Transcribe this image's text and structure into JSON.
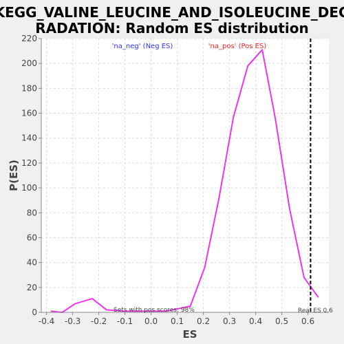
{
  "chart_data": {
    "type": "line",
    "title_line1": "KEGG_VALINE_LEUCINE_AND_ISOLEUCINE_DEG",
    "title_line2": "RADATION: Random ES distribution",
    "xlabel": "ES",
    "ylabel": "P(ES)",
    "xlim": [
      -0.42,
      0.68
    ],
    "ylim": [
      0,
      220
    ],
    "x_ticks": [
      -0.4,
      -0.3,
      -0.2,
      -0.1,
      0.0,
      0.1,
      0.2,
      0.3,
      0.4,
      0.5,
      0.6
    ],
    "x_tick_labels": [
      "-0.4",
      "-0.3",
      "-0.2",
      "-0.1",
      "0.0",
      "0.1",
      "0.2",
      "0.3",
      "0.4",
      "0.5",
      "0.6"
    ],
    "y_ticks": [
      0,
      20,
      40,
      60,
      80,
      100,
      120,
      140,
      160,
      180,
      200,
      220
    ],
    "y_tick_labels": [
      "0",
      "20",
      "40",
      "60",
      "80",
      "100",
      "120",
      "140",
      "160",
      "180",
      "200",
      "220"
    ],
    "grid": true,
    "legend": [
      {
        "label": "'na_neg' (Neg ES)",
        "color": "#3333ff"
      },
      {
        "label": "'na_pos' (Pos ES)",
        "color": "#ff2222"
      }
    ],
    "series": [
      {
        "color": "#ee33ee",
        "x": [
          -0.383,
          -0.34,
          -0.29,
          -0.225,
          -0.17,
          -0.105,
          -0.05,
          0.01,
          0.06,
          0.15,
          0.205,
          0.26,
          0.315,
          0.37,
          0.425,
          0.475,
          0.53,
          0.585,
          0.64
        ],
        "y": [
          1,
          0,
          7,
          11,
          2,
          1,
          1,
          1,
          1,
          5,
          36,
          92,
          157,
          198,
          211,
          156,
          83,
          28,
          12
        ]
      }
    ],
    "real_es": {
      "value": 0.61,
      "label": "Real ES 0.6"
    },
    "annotation": "Sets with pos scores: 98%"
  }
}
